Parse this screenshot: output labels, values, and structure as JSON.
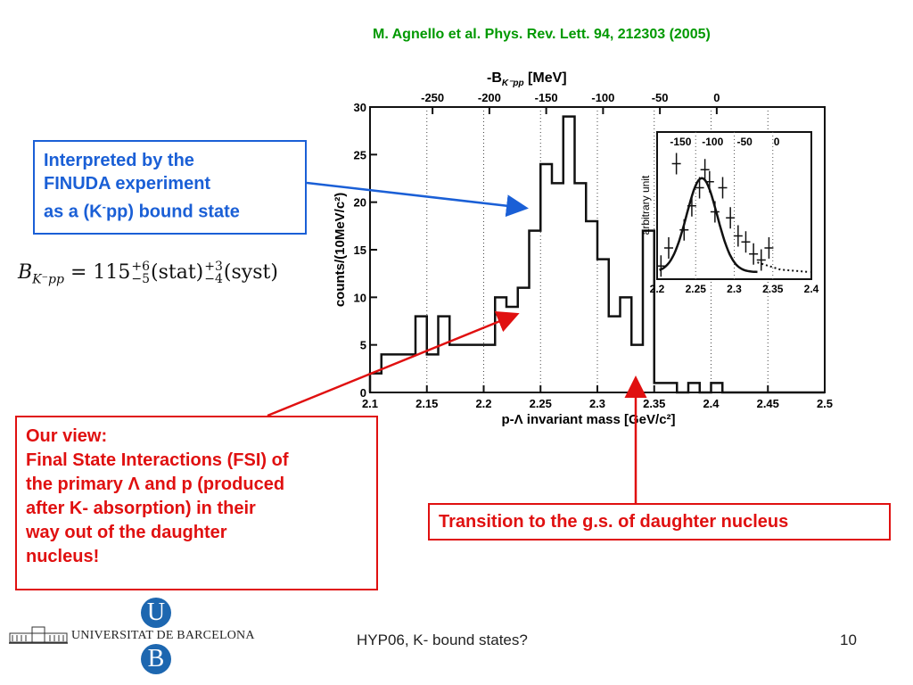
{
  "citation": "M. Agnello et al. Phys. Rev. Lett. 94, 212303 (2005)",
  "finuda_box": {
    "line1": "Interpreted by the",
    "line2": "FINUDA experiment",
    "line3_pre": "as a (K",
    "line3_sup": "-",
    "line3_post": "pp) bound state"
  },
  "formula": {
    "lhs": "B",
    "lhs_sub": "K⁻pp",
    "eq": " = 115",
    "stat_sup": "+6",
    "stat_sub": "−5",
    "stat": "(stat)",
    "syst_sup": "+3",
    "syst_sub": "−4",
    "syst": "(syst)"
  },
  "fsi_box": {
    "line1": "Our view:",
    "line2": "Final State Interactions (FSI) of",
    "line3": "the primary Λ and p (produced",
    "line4": "after K- absorption) in their",
    "line5": "way out of the daughter",
    "line6": "nucleus!"
  },
  "gs_box": {
    "text": "Transition to the g.s. of daughter nucleus"
  },
  "footer": {
    "center": "HYP06, K- bound states?",
    "page": "10",
    "university": "UNIVERSITAT DE BARCELONA",
    "logo_u": "U",
    "logo_b": "B"
  },
  "colors": {
    "citation": "#009900",
    "blue_box": "#1a5fd6",
    "red_box": "#e01010"
  },
  "chart_data": [
    {
      "type": "bar",
      "style": "histogram-step",
      "xlabel": "p-Λ invariant mass [GeV/c²]",
      "ylabel": "counts/(10MeV/c²)",
      "top_axis_label": "-B",
      "top_axis_label_sub": "K⁻pp",
      "top_axis_label_unit": " [MeV]",
      "xlim": [
        2.1,
        2.5
      ],
      "ylim": [
        0,
        30
      ],
      "x_ticks": [
        "2.1",
        "2.15",
        "2.2",
        "2.25",
        "2.3",
        "2.35",
        "2.4",
        "2.45",
        "2.5"
      ],
      "y_ticks": [
        "0",
        "5",
        "10",
        "15",
        "20",
        "25",
        "30"
      ],
      "top_ticks": [
        "-250",
        "-200",
        "-150",
        "-100",
        "-50",
        "0"
      ],
      "grid": "dotted vertical",
      "bin_width": 0.01,
      "bin_starts": [
        2.1,
        2.11,
        2.12,
        2.13,
        2.14,
        2.15,
        2.16,
        2.17,
        2.18,
        2.19,
        2.2,
        2.21,
        2.22,
        2.23,
        2.24,
        2.25,
        2.26,
        2.27,
        2.28,
        2.29,
        2.3,
        2.31,
        2.32,
        2.33,
        2.34,
        2.35,
        2.36,
        2.37,
        2.38,
        2.39,
        2.4,
        2.41,
        2.42,
        2.43,
        2.44,
        2.45,
        2.46,
        2.47,
        2.48,
        2.49
      ],
      "values": [
        2,
        4,
        4,
        4,
        8,
        4,
        8,
        5,
        5,
        5,
        5,
        10,
        9,
        11,
        17,
        24,
        22,
        29,
        22,
        18,
        14,
        8,
        10,
        5,
        17,
        1,
        1,
        0,
        1,
        0,
        1,
        0,
        0,
        0,
        0,
        0,
        0,
        0,
        0,
        0
      ]
    },
    {
      "type": "scatter",
      "style": "inset-with-fit",
      "ylabel": "arbitrary unit",
      "xlim": [
        2.2,
        2.4
      ],
      "x_ticks": [
        "2.2",
        "2.25",
        "2.3",
        "2.35",
        "2.4"
      ],
      "top_ticks": [
        "-150",
        "-100",
        "-50",
        "0"
      ],
      "grid": "dotted vertical",
      "x": [
        2.205,
        2.215,
        2.225,
        2.235,
        2.245,
        2.255,
        2.262,
        2.268,
        2.275,
        2.285,
        2.295,
        2.305,
        2.315,
        2.325,
        2.335,
        2.345
      ],
      "y": [
        0.05,
        0.2,
        0.9,
        0.35,
        0.55,
        0.7,
        0.85,
        0.75,
        0.5,
        0.7,
        0.45,
        0.3,
        0.25,
        0.15,
        0.1,
        0.2
      ],
      "fit_curve_peak_x": 2.258
    }
  ]
}
